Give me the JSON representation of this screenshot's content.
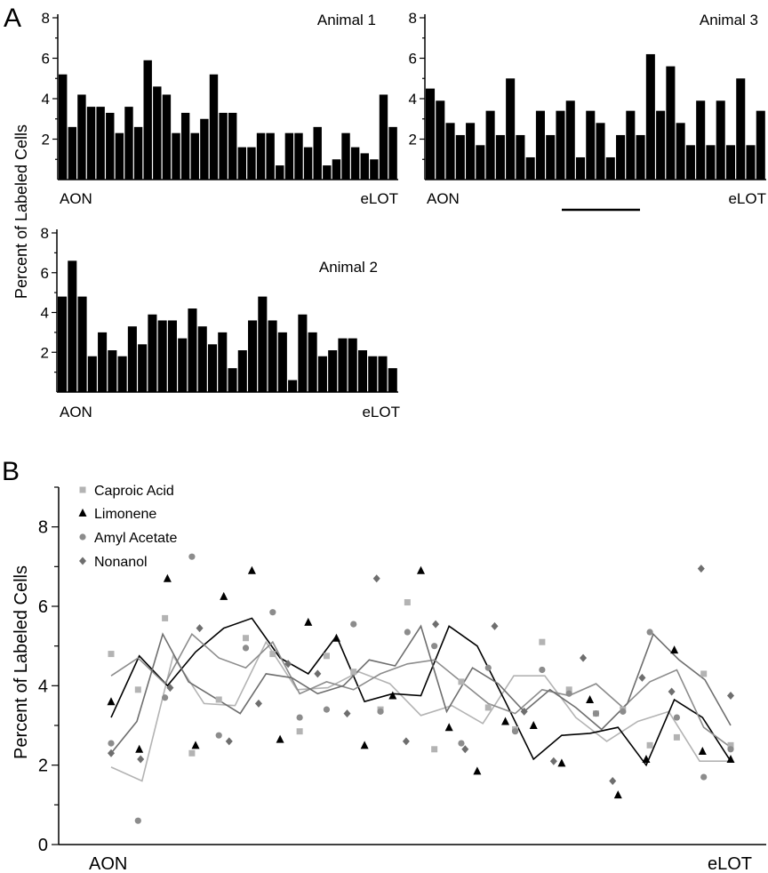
{
  "figure": {
    "panel_a_label": "A",
    "panel_b_label": "B",
    "ylabel": "Percent of Labeled Cells"
  },
  "colors": {
    "bar": "#000000",
    "caproic_acid": "#b3b3b3",
    "limonene": "#000000",
    "amyl_acetate": "#8c8c8c",
    "nonanol": "#6e6e6e"
  },
  "chart_data": [
    {
      "type": "bar",
      "title": "Animal 1",
      "xlabel_left": "AON",
      "xlabel_right": "eLOT",
      "ylabel": "Percent of Labeled Cells",
      "ylim": [
        0,
        8
      ],
      "yticks": [
        2,
        4,
        6,
        8
      ],
      "values": [
        5.2,
        2.6,
        4.2,
        3.6,
        3.6,
        3.3,
        2.3,
        3.6,
        2.6,
        5.9,
        4.6,
        4.2,
        2.3,
        3.3,
        2.3,
        3.0,
        5.2,
        3.3,
        3.3,
        1.6,
        1.6,
        2.3,
        2.3,
        0.7,
        2.3,
        2.3,
        1.6,
        2.6,
        0.7,
        1.0,
        2.3,
        1.6,
        1.3,
        1.0,
        4.2,
        2.6
      ]
    },
    {
      "type": "bar",
      "title": "Animal 3",
      "xlabel_left": "AON",
      "xlabel_right": "eLOT",
      "ylim": [
        0,
        8
      ],
      "yticks": [
        2,
        4,
        6,
        8
      ],
      "values": [
        4.5,
        3.9,
        2.8,
        2.2,
        2.8,
        1.7,
        3.4,
        2.2,
        5.0,
        2.2,
        1.1,
        3.4,
        2.2,
        3.4,
        3.9,
        1.1,
        3.4,
        2.8,
        1.1,
        2.2,
        3.4,
        2.2,
        6.2,
        3.4,
        5.6,
        2.8,
        1.7,
        3.9,
        1.7,
        3.9,
        1.7,
        5.0,
        1.7,
        3.4
      ]
    },
    {
      "type": "bar",
      "title": "Animal 2",
      "xlabel_left": "AON",
      "xlabel_right": "eLOT",
      "ylim": [
        0,
        8
      ],
      "yticks": [
        2,
        4,
        6,
        8
      ],
      "values": [
        4.8,
        6.6,
        4.8,
        1.8,
        3.0,
        2.1,
        1.8,
        3.3,
        2.4,
        3.9,
        3.6,
        3.6,
        2.7,
        4.2,
        3.3,
        2.4,
        3.0,
        1.2,
        2.1,
        3.6,
        4.8,
        3.6,
        3.0,
        0.6,
        3.9,
        3.0,
        1.8,
        2.1,
        2.7,
        2.7,
        2.1,
        1.8,
        1.8,
        1.2
      ]
    },
    {
      "type": "scatter",
      "xlabel_left": "AON",
      "xlabel_right": "eLOT",
      "ylabel": "Percent of Labeled Cells",
      "ylim": [
        0,
        9
      ],
      "yticks": [
        0,
        2,
        4,
        6,
        8
      ],
      "legend_position": "top-left",
      "series": [
        {
          "name": "Caproic Acid",
          "marker": "square",
          "points": [
            4.8,
            3.9,
            5.7,
            2.3,
            3.65,
            5.2,
            4.8,
            2.85,
            4.75,
            4.35,
            3.4,
            6.1,
            2.4,
            4.1,
            3.45,
            2.9,
            5.1,
            3.9,
            3.3,
            3.4,
            2.5,
            2.7,
            4.3,
            2.5
          ],
          "trend": [
            1.95,
            1.6,
            4.75,
            3.55,
            3.5,
            5.1,
            3.9,
            3.95,
            4.35,
            4.05,
            3.25,
            3.5,
            3.05,
            4.25,
            4.25,
            3.2,
            2.6,
            3.1,
            3.35,
            2.1,
            2.1
          ]
        },
        {
          "name": "Limonene",
          "marker": "triangle",
          "points": [
            3.6,
            2.4,
            6.7,
            2.5,
            6.25,
            6.9,
            2.65,
            5.6,
            5.2,
            2.5,
            3.75,
            6.9,
            2.95,
            1.85,
            3.1,
            3.0,
            2.05,
            3.65,
            1.25,
            2.15,
            4.9,
            2.35,
            2.15
          ],
          "trend": [
            3.2,
            4.75,
            4.0,
            4.85,
            5.45,
            5.7,
            4.7,
            4.3,
            5.25,
            3.6,
            3.8,
            3.75,
            5.5,
            5.0,
            3.6,
            2.15,
            2.75,
            2.8,
            2.95,
            2.0,
            3.65,
            3.2,
            2.1
          ]
        },
        {
          "name": "Amyl Acetate",
          "marker": "circle",
          "points": [
            2.55,
            0.6,
            3.7,
            7.25,
            2.75,
            4.95,
            5.85,
            3.2,
            3.4,
            5.55,
            3.35,
            5.35,
            5.0,
            2.55,
            4.45,
            2.85,
            4.4,
            3.8,
            3.3,
            3.35,
            5.35,
            3.2,
            1.7,
            2.4
          ],
          "trend": [
            4.25,
            4.7,
            4.05,
            5.3,
            4.7,
            4.45,
            5.1,
            3.8,
            4.1,
            3.9,
            4.3,
            4.55,
            4.65,
            4.1,
            3.55,
            3.3,
            3.9,
            3.75,
            4.05,
            3.45,
            4.1,
            4.4,
            2.95,
            2.45
          ]
        },
        {
          "name": "Nonanol",
          "marker": "diamond",
          "points": [
            2.3,
            2.15,
            3.95,
            5.45,
            2.6,
            3.55,
            4.55,
            4.3,
            3.3,
            6.7,
            2.6,
            5.55,
            2.4,
            5.5,
            3.35,
            2.1,
            4.7,
            1.6,
            4.2,
            3.85,
            6.95,
            3.75
          ],
          "trend": [
            2.3,
            3.1,
            5.3,
            4.1,
            3.7,
            3.3,
            4.3,
            4.2,
            3.8,
            4.0,
            4.65,
            4.5,
            5.5,
            3.35,
            4.45,
            4.05,
            3.35,
            3.9,
            3.45,
            2.9,
            3.55,
            5.3,
            4.65,
            4.15,
            3.0
          ]
        }
      ]
    }
  ]
}
